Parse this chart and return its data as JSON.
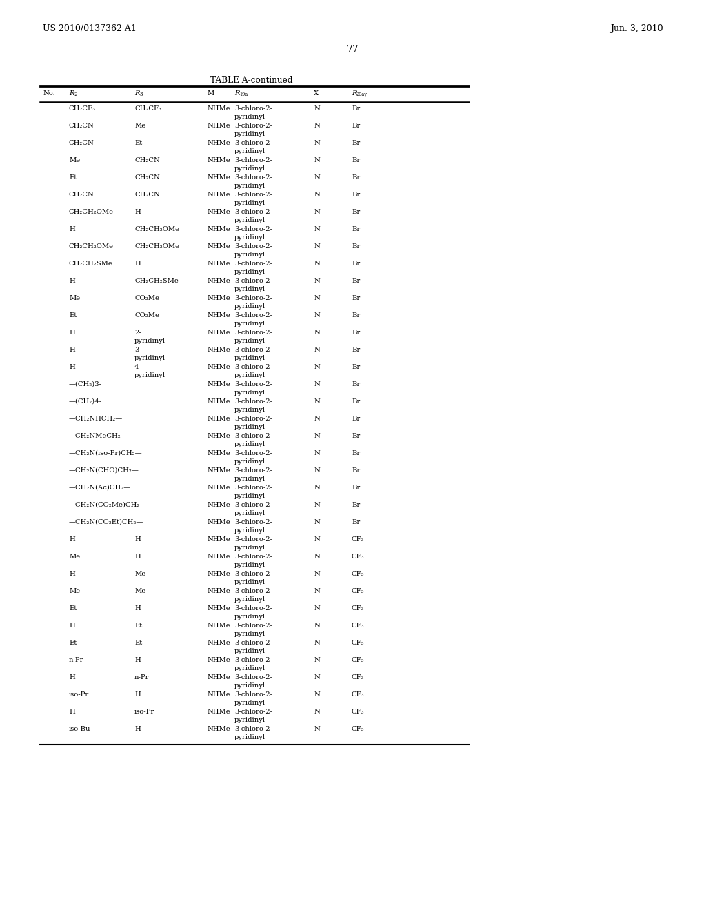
{
  "header_left": "US 2010/0137362 A1",
  "header_right": "Jun. 3, 2010",
  "page_number": "77",
  "table_title": "TABLE A-continued",
  "bg_color": "#ffffff",
  "text_color": "#000000",
  "font_size": 7.2,
  "header_font_size": 9.0,
  "rows": [
    [
      "",
      "CH2CF3",
      "CH2CF3",
      "NHMe",
      "3-chloro-2-|pyridinyl",
      "N",
      "Br"
    ],
    [
      "",
      "CH2CN",
      "Me",
      "NHMe",
      "3-chloro-2-|pyridinyl",
      "N",
      "Br"
    ],
    [
      "",
      "CH2CN",
      "Et",
      "NHMe",
      "3-chloro-2-|pyridinyl",
      "N",
      "Br"
    ],
    [
      "",
      "Me",
      "CH2CN",
      "NHMe",
      "3-chloro-2-|pyridinyl",
      "N",
      "Br"
    ],
    [
      "",
      "Et",
      "CH2CN",
      "NHMe",
      "3-chloro-2-|pyridinyl",
      "N",
      "Br"
    ],
    [
      "",
      "CH2CN",
      "CH2CN",
      "NHMe",
      "3-chloro-2-|pyridinyl",
      "N",
      "Br"
    ],
    [
      "",
      "CH2CH2OMe",
      "H",
      "NHMe",
      "3-chloro-2-|pyridinyl",
      "N",
      "Br"
    ],
    [
      "",
      "H",
      "CH2CH2OMe",
      "NHMe",
      "3-chloro-2-|pyridinyl",
      "N",
      "Br"
    ],
    [
      "",
      "CH2CH2OMe",
      "CH2CH2OMe",
      "NHMe",
      "3-chloro-2-|pyridinyl",
      "N",
      "Br"
    ],
    [
      "",
      "CH2CH2SMe",
      "H",
      "NHMe",
      "3-chloro-2-|pyridinyl",
      "N",
      "Br"
    ],
    [
      "",
      "H",
      "CH2CH2SMe",
      "NHMe",
      "3-chloro-2-|pyridinyl",
      "N",
      "Br"
    ],
    [
      "",
      "Me",
      "CO2Me",
      "NHMe",
      "3-chloro-2-|pyridinyl",
      "N",
      "Br"
    ],
    [
      "",
      "Et",
      "CO2Me",
      "NHMe",
      "3-chloro-2-|pyridinyl",
      "N",
      "Br"
    ],
    [
      "",
      "H",
      "2-|pyridinyl",
      "NHMe",
      "3-chloro-2-|pyridinyl",
      "N",
      "Br"
    ],
    [
      "",
      "H",
      "3-|pyridinyl",
      "NHMe",
      "3-chloro-2-|pyridinyl",
      "N",
      "Br"
    ],
    [
      "",
      "H",
      "4-|pyridinyl",
      "NHMe",
      "3-chloro-2-|pyridinyl",
      "N",
      "Br"
    ],
    [
      "",
      "-(CH2)3-",
      "",
      "NHMe",
      "3-chloro-2-|pyridinyl",
      "N",
      "Br"
    ],
    [
      "",
      "-(CH2)4-",
      "",
      "NHMe",
      "3-chloro-2-|pyridinyl",
      "N",
      "Br"
    ],
    [
      "",
      "-CH2NHCH2-",
      "",
      "NHMe",
      "3-chloro-2-|pyridinyl",
      "N",
      "Br"
    ],
    [
      "",
      "-CH2NMeCH2-",
      "",
      "NHMe",
      "3-chloro-2-|pyridinyl",
      "N",
      "Br"
    ],
    [
      "",
      "-CH2N(iso-Pr)CH2-",
      "",
      "NHMe",
      "3-chloro-2-|pyridinyl",
      "N",
      "Br"
    ],
    [
      "",
      "-CH2N(CHO)CH2-",
      "",
      "NHMe",
      "3-chloro-2-|pyridinyl",
      "N",
      "Br"
    ],
    [
      "",
      "-CH2N(Ac)CH2-",
      "",
      "NHMe",
      "3-chloro-2-|pyridinyl",
      "N",
      "Br"
    ],
    [
      "",
      "-CH2N(CO2Me)CH2-",
      "",
      "NHMe",
      "3-chloro-2-|pyridinyl",
      "N",
      "Br"
    ],
    [
      "",
      "-CH2N(CO2Et)CH2-",
      "",
      "NHMe",
      "3-chloro-2-|pyridinyl",
      "N",
      "Br"
    ],
    [
      "",
      "H",
      "H",
      "NHMe",
      "3-chloro-2-|pyridinyl",
      "N",
      "CF3"
    ],
    [
      "",
      "Me",
      "H",
      "NHMe",
      "3-chloro-2-|pyridinyl",
      "N",
      "CF3"
    ],
    [
      "",
      "H",
      "Me",
      "NHMe",
      "3-chloro-2-|pyridinyl",
      "N",
      "CF3"
    ],
    [
      "",
      "Me",
      "Me",
      "NHMe",
      "3-chloro-2-|pyridinyl",
      "N",
      "CF3"
    ],
    [
      "",
      "Et",
      "H",
      "NHMe",
      "3-chloro-2-|pyridinyl",
      "N",
      "CF3"
    ],
    [
      "",
      "H",
      "Et",
      "NHMe",
      "3-chloro-2-|pyridinyl",
      "N",
      "CF3"
    ],
    [
      "",
      "Et",
      "Et",
      "NHMe",
      "3-chloro-2-|pyridinyl",
      "N",
      "CF3"
    ],
    [
      "",
      "n-Pr",
      "H",
      "NHMe",
      "3-chloro-2-|pyridinyl",
      "N",
      "CF3"
    ],
    [
      "",
      "H",
      "n-Pr",
      "NHMe",
      "3-chloro-2-|pyridinyl",
      "N",
      "CF3"
    ],
    [
      "",
      "iso-Pr",
      "H",
      "NHMe",
      "3-chloro-2-|pyridinyl",
      "N",
      "CF3"
    ],
    [
      "",
      "H",
      "iso-Pr",
      "NHMe",
      "3-chloro-2-|pyridinyl",
      "N",
      "CF3"
    ],
    [
      "",
      "iso-Bu",
      "H",
      "NHMe",
      "3-chloro-2-|pyridinyl",
      "N",
      "CF3"
    ]
  ]
}
